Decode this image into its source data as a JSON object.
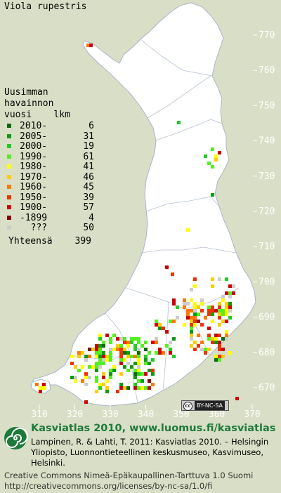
{
  "map": {
    "title": "Viola rupestris",
    "north_ticks": [
      "770",
      "760",
      "750",
      "740",
      "730",
      "720",
      "710",
      "700",
      "690",
      "680",
      "670"
    ],
    "east_ticks": [
      "310",
      "320",
      "330",
      "340",
      "350",
      "360",
      "370"
    ],
    "colors": {
      "background": "#d9dfc6",
      "land": "#ffffff",
      "borders": "#a8b4c8",
      "grid": "#c8ccd4"
    }
  },
  "legend": {
    "header_lines": [
      "Uusimman",
      "havainnon",
      "vuosi    lkm"
    ],
    "items": [
      {
        "label": "2010-",
        "count": "6",
        "color": "#0a6b0a"
      },
      {
        "label": "2005-",
        "count": "31",
        "color": "#119a11"
      },
      {
        "label": "2000-",
        "count": "19",
        "color": "#22cc22"
      },
      {
        "label": "1990-",
        "count": "61",
        "color": "#55ee22"
      },
      {
        "label": "1980-",
        "count": "41",
        "color": "#ffff00"
      },
      {
        "label": "1970-",
        "count": "46",
        "color": "#ffcc00"
      },
      {
        "label": "1960-",
        "count": "45",
        "color": "#ff7700"
      },
      {
        "label": "1950-",
        "count": "39",
        "color": "#ee3300"
      },
      {
        "label": "1900-",
        "count": "57",
        "color": "#cc0000"
      },
      {
        "label": "-1899",
        "count": "4",
        "color": "#880000"
      },
      {
        "label": "???",
        "count": "50",
        "color": "#cccccc"
      }
    ],
    "total_label": "Yhteensä",
    "total_count": "399"
  },
  "footer": {
    "heading": "Kasviatlas 2010, www.luomus.fi/kasviatlas",
    "citation": "Lampinen, R. & Lahti, T. 2011: Kasviatlas 2010. – Helsingin Yliopisto, Luonnontieteellinen keskusmuseo, Kasvimuseo, Helsinki.",
    "license_line1": "Creative Commons Nimeä-Epäkaupallinen-Tarttuva 1.0 Suomi",
    "license_line2": "http://creativecommons.org/licenses/by-nc-sa/1.0/fi",
    "badge_c": "cc",
    "badge_text": "BY-NC-SA"
  }
}
